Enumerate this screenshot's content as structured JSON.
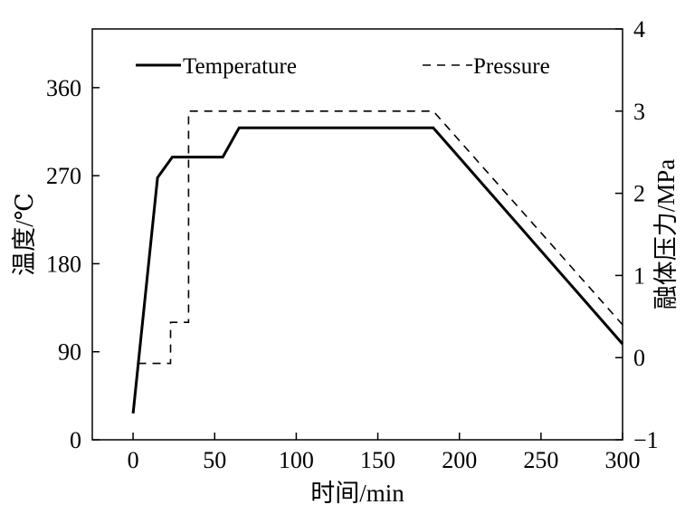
{
  "chart_data": {
    "type": "line",
    "title": "",
    "xlabel": "时间/min",
    "ylabel_left": "温度/℃",
    "ylabel_right": "融体压力/MPa",
    "xlim": [
      -25,
      300
    ],
    "ylim_left": [
      0,
      420
    ],
    "ylim_right": [
      -1,
      4
    ],
    "xticks": [
      0,
      50,
      100,
      150,
      200,
      250,
      300
    ],
    "yticks_left": [
      0,
      90,
      180,
      270,
      360
    ],
    "yticks_right": [
      -1,
      0,
      1,
      2,
      3,
      4
    ],
    "legend_position": "top",
    "grid": false,
    "series": [
      {
        "name": "Temperature",
        "axis": "left",
        "style": "solid",
        "color": "#000000",
        "x": [
          0,
          15,
          24,
          55,
          65,
          184,
          300
        ],
        "y": [
          27,
          268,
          289,
          289,
          319,
          319,
          98
        ]
      },
      {
        "name": "Pressure",
        "axis": "right",
        "style": "dashed",
        "color": "#000000",
        "x": [
          3,
          23,
          23,
          34,
          34,
          184,
          300
        ],
        "y": [
          -0.07,
          -0.07,
          0.43,
          0.43,
          3.0,
          3.0,
          0.4
        ]
      }
    ]
  }
}
